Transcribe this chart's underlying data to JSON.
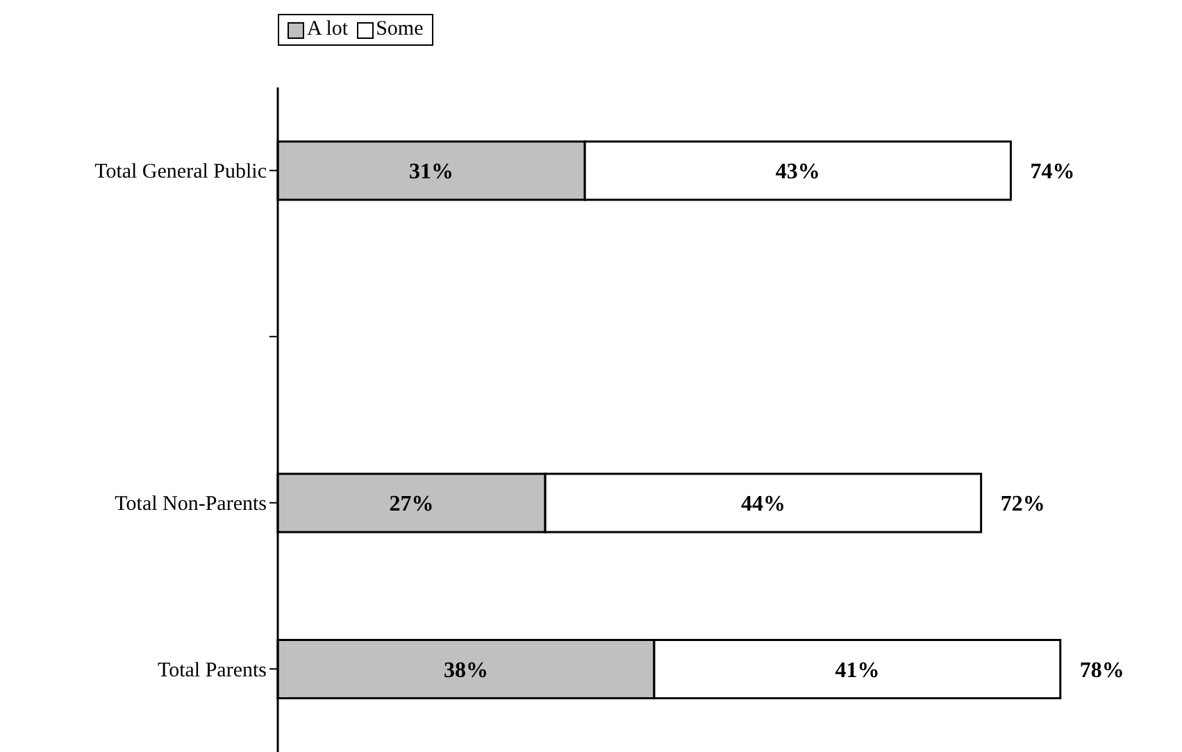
{
  "chart_data": {
    "type": "bar",
    "orientation": "horizontal",
    "stacked": true,
    "categories": [
      "Total General Public",
      null,
      "Total Non-Parents",
      "Total Parents"
    ],
    "series": [
      {
        "name": "A lot",
        "color": "#c0c0c0",
        "values": [
          31,
          null,
          27,
          38
        ],
        "value_labels": [
          "31%",
          null,
          "27%",
          "38%"
        ]
      },
      {
        "name": "Some",
        "color": "#ffffff",
        "values": [
          43,
          null,
          44,
          41
        ],
        "value_labels": [
          "43%",
          null,
          "44%",
          "41%"
        ]
      }
    ],
    "totals": [
      "74%",
      null,
      "72%",
      "78%"
    ],
    "legend": "top"
  }
}
